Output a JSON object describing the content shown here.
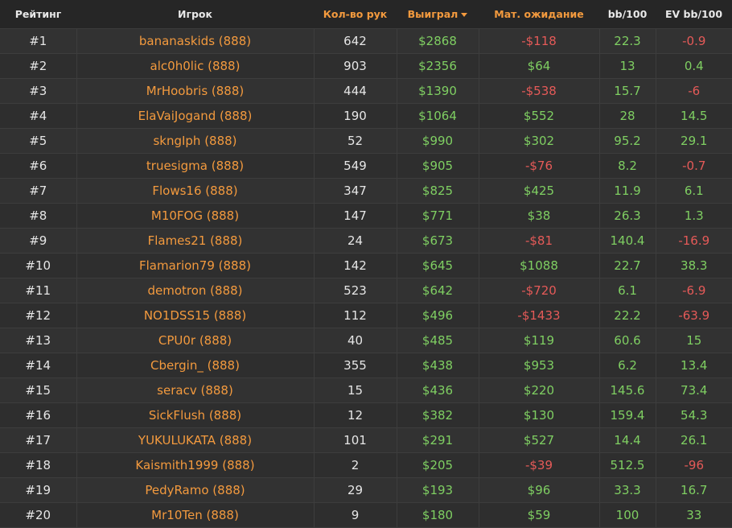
{
  "colors": {
    "accent": "#f39a3e",
    "positive": "#7fcf62",
    "negative": "#e55a58",
    "background": "#2b2b2b"
  },
  "headers": {
    "rank": "Рейтинг",
    "player": "Игрок",
    "hands": "Кол-во рук",
    "won": "Выиграл",
    "ev": "Мат. ожидание",
    "bb100": "bb/100",
    "evbb100": "EV bb/100"
  },
  "sort": {
    "column": "won",
    "direction": "desc",
    "icon": "caret-down-icon"
  },
  "rows": [
    {
      "rank": "#1",
      "player": "bananaskids (888)",
      "hands": "642",
      "won": "$2868",
      "ev": "-$118",
      "bb100": "22.3",
      "evbb100": "-0.9"
    },
    {
      "rank": "#2",
      "player": "alc0h0lic (888)",
      "hands": "903",
      "won": "$2356",
      "ev": "$64",
      "bb100": "13",
      "evbb100": "0.4"
    },
    {
      "rank": "#3",
      "player": "MrHoobris (888)",
      "hands": "444",
      "won": "$1390",
      "ev": "-$538",
      "bb100": "15.7",
      "evbb100": "-6"
    },
    {
      "rank": "#4",
      "player": "ElaVaiJogand (888)",
      "hands": "190",
      "won": "$1064",
      "ev": "$552",
      "bb100": "28",
      "evbb100": "14.5"
    },
    {
      "rank": "#5",
      "player": "skngIph (888)",
      "hands": "52",
      "won": "$990",
      "ev": "$302",
      "bb100": "95.2",
      "evbb100": "29.1"
    },
    {
      "rank": "#6",
      "player": "truesigma (888)",
      "hands": "549",
      "won": "$905",
      "ev": "-$76",
      "bb100": "8.2",
      "evbb100": "-0.7"
    },
    {
      "rank": "#7",
      "player": "Flows16 (888)",
      "hands": "347",
      "won": "$825",
      "ev": "$425",
      "bb100": "11.9",
      "evbb100": "6.1"
    },
    {
      "rank": "#8",
      "player": "M10FOG (888)",
      "hands": "147",
      "won": "$771",
      "ev": "$38",
      "bb100": "26.3",
      "evbb100": "1.3"
    },
    {
      "rank": "#9",
      "player": "Flames21 (888)",
      "hands": "24",
      "won": "$673",
      "ev": "-$81",
      "bb100": "140.4",
      "evbb100": "-16.9"
    },
    {
      "rank": "#10",
      "player": "Flamarion79 (888)",
      "hands": "142",
      "won": "$645",
      "ev": "$1088",
      "bb100": "22.7",
      "evbb100": "38.3"
    },
    {
      "rank": "#11",
      "player": "demotron (888)",
      "hands": "523",
      "won": "$642",
      "ev": "-$720",
      "bb100": "6.1",
      "evbb100": "-6.9"
    },
    {
      "rank": "#12",
      "player": "NO1DSS15 (888)",
      "hands": "112",
      "won": "$496",
      "ev": "-$1433",
      "bb100": "22.2",
      "evbb100": "-63.9"
    },
    {
      "rank": "#13",
      "player": "CPU0r (888)",
      "hands": "40",
      "won": "$485",
      "ev": "$119",
      "bb100": "60.6",
      "evbb100": "15"
    },
    {
      "rank": "#14",
      "player": "Cbergin_ (888)",
      "hands": "355",
      "won": "$438",
      "ev": "$953",
      "bb100": "6.2",
      "evbb100": "13.4"
    },
    {
      "rank": "#15",
      "player": "seracv (888)",
      "hands": "15",
      "won": "$436",
      "ev": "$220",
      "bb100": "145.6",
      "evbb100": "73.4"
    },
    {
      "rank": "#16",
      "player": "SickFlush (888)",
      "hands": "12",
      "won": "$382",
      "ev": "$130",
      "bb100": "159.4",
      "evbb100": "54.3"
    },
    {
      "rank": "#17",
      "player": "YUKULUKATA (888)",
      "hands": "101",
      "won": "$291",
      "ev": "$527",
      "bb100": "14.4",
      "evbb100": "26.1"
    },
    {
      "rank": "#18",
      "player": "Kaismith1999 (888)",
      "hands": "2",
      "won": "$205",
      "ev": "-$39",
      "bb100": "512.5",
      "evbb100": "-96"
    },
    {
      "rank": "#19",
      "player": "PedyRamo (888)",
      "hands": "29",
      "won": "$193",
      "ev": "$96",
      "bb100": "33.3",
      "evbb100": "16.7"
    },
    {
      "rank": "#20",
      "player": "Mr10Ten (888)",
      "hands": "9",
      "won": "$180",
      "ev": "$59",
      "bb100": "100",
      "evbb100": "33"
    }
  ]
}
